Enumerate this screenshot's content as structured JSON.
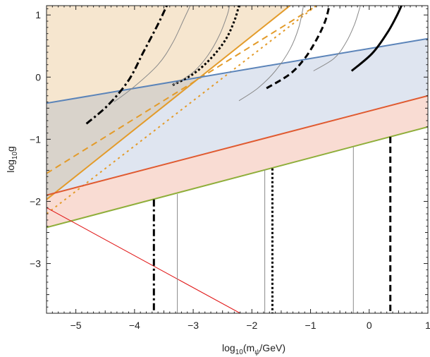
{
  "chart_data": {
    "type": "line",
    "xlabel": {
      "prefix": "log",
      "sub": "10",
      "mid": "(m",
      "sub2": "ψ",
      "suffix": "/GeV)"
    },
    "ylabel": {
      "prefix": "log",
      "sub": "10",
      "suffix": "g"
    },
    "xlim": [
      -5.5,
      1.0
    ],
    "ylim": [
      -3.8,
      1.15
    ],
    "xticks": [
      {
        "v": -5,
        "label": "−5"
      },
      {
        "v": -4,
        "label": "−4"
      },
      {
        "v": -3,
        "label": "−3"
      },
      {
        "v": -2,
        "label": "−2"
      },
      {
        "v": -1,
        "label": "−1"
      },
      {
        "v": 0,
        "label": "0"
      },
      {
        "v": 1,
        "label": "1"
      }
    ],
    "yticks": [
      {
        "v": 1,
        "label": "1"
      },
      {
        "v": 0,
        "label": "0"
      },
      {
        "v": -1,
        "label": "−1"
      },
      {
        "v": -2,
        "label": "−2"
      },
      {
        "v": -3,
        "label": "−3"
      }
    ],
    "colors": {
      "orange_fill": "#f6e6cf",
      "blue_fill": "#dfe5f0",
      "overlap_fill": "#d9d3cb",
      "pink_fill": "#f9dcd3",
      "blue_line": "#5b84b9",
      "orange_line": "#e39b2a",
      "red_line": "#e05a30",
      "green_line": "#8fae3a",
      "thin_red": "#e01010",
      "gray": "#8a8a8a",
      "black": "#000000"
    },
    "lines": {
      "blue": [
        [
          -5.5,
          -0.42
        ],
        [
          1.0,
          0.62
        ]
      ],
      "red": [
        [
          -5.5,
          -1.9
        ],
        [
          1.0,
          -0.3
        ]
      ],
      "green": [
        [
          -5.5,
          -2.42
        ],
        [
          1.0,
          -0.8
        ]
      ],
      "orange_solid": [
        [
          -5.5,
          -1.97
        ],
        [
          -1.35,
          1.15
        ]
      ],
      "orange_dashed": [
        [
          -5.5,
          -1.55
        ],
        [
          -0.9,
          1.15
        ]
      ],
      "orange_dotted": [
        [
          -5.5,
          -2.2
        ],
        [
          -0.9,
          1.15
        ]
      ],
      "thin_red": [
        [
          -5.5,
          -2.1
        ],
        [
          -2.2,
          -3.8
        ]
      ]
    },
    "vertical_lines": [
      {
        "x": -3.67,
        "y_from": -1.97,
        "style": "dashdot"
      },
      {
        "x": -3.27,
        "y_from": -1.88,
        "style": "gray"
      },
      {
        "x": -1.78,
        "y_from": -1.49,
        "style": "gray"
      },
      {
        "x": -1.65,
        "y_from": -1.47,
        "style": "dotted"
      },
      {
        "x": -0.27,
        "y_from": -1.12,
        "style": "gray"
      },
      {
        "x": 0.36,
        "y_from": -0.96,
        "style": "dashed"
      }
    ],
    "curves": [
      {
        "style": "dashdot",
        "points": [
          [
            -4.82,
            -0.75
          ],
          [
            -4.45,
            -0.45
          ],
          [
            -4.1,
            -0.05
          ],
          [
            -3.85,
            0.4
          ],
          [
            -3.6,
            0.85
          ],
          [
            -3.45,
            1.15
          ]
        ]
      },
      {
        "style": "gray",
        "points": [
          [
            -4.35,
            -0.4
          ],
          [
            -4.0,
            -0.15
          ],
          [
            -3.6,
            0.2
          ],
          [
            -3.35,
            0.55
          ],
          [
            -3.15,
            0.95
          ],
          [
            -3.05,
            1.15
          ]
        ]
      },
      {
        "style": "dotted",
        "points": [
          [
            -3.35,
            -0.13
          ],
          [
            -3.0,
            0.05
          ],
          [
            -2.7,
            0.3
          ],
          [
            -2.45,
            0.6
          ],
          [
            -2.3,
            0.9
          ],
          [
            -2.22,
            1.15
          ]
        ]
      },
      {
        "style": "gray",
        "points": [
          [
            -3.35,
            -0.13
          ],
          [
            -3.0,
            0.08
          ],
          [
            -2.75,
            0.35
          ],
          [
            -2.55,
            0.68
          ],
          [
            -2.42,
            1.0
          ],
          [
            -2.38,
            1.15
          ]
        ]
      },
      {
        "style": "gray",
        "points": [
          [
            -2.22,
            -0.38
          ],
          [
            -1.9,
            -0.18
          ],
          [
            -1.6,
            0.1
          ],
          [
            -1.35,
            0.45
          ],
          [
            -1.2,
            0.8
          ],
          [
            -1.12,
            1.15
          ]
        ]
      },
      {
        "style": "dashed",
        "points": [
          [
            -1.75,
            -0.18
          ],
          [
            -1.35,
            0.05
          ],
          [
            -1.1,
            0.3
          ],
          [
            -0.9,
            0.6
          ],
          [
            -0.75,
            0.9
          ],
          [
            -0.68,
            1.15
          ]
        ]
      },
      {
        "style": "gray",
        "points": [
          [
            -0.95,
            0.1
          ],
          [
            -0.6,
            0.3
          ],
          [
            -0.4,
            0.55
          ],
          [
            -0.25,
            0.85
          ],
          [
            -0.15,
            1.15
          ]
        ]
      },
      {
        "style": "solid",
        "points": [
          [
            -0.3,
            0.1
          ],
          [
            0.05,
            0.38
          ],
          [
            0.3,
            0.7
          ],
          [
            0.45,
            0.95
          ],
          [
            0.55,
            1.15
          ]
        ]
      }
    ]
  }
}
